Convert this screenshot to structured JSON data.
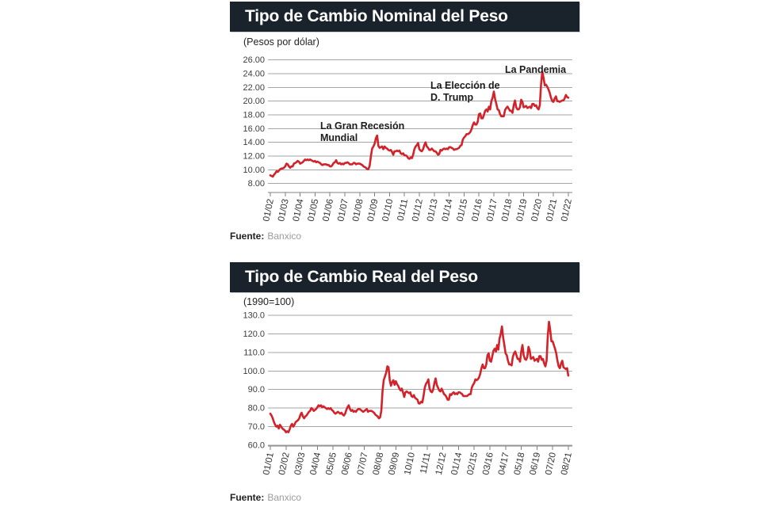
{
  "colors": {
    "accent_red": "#d2232a",
    "header_bar": "#1a222b",
    "grid": "#a6a6a6",
    "axis": "#808080"
  },
  "chart_data": [
    {
      "type": "line",
      "title": "Tipo de Cambio Nominal del Peso",
      "subtitle": "(Pesos por dólar)",
      "source_label": "Fuente:",
      "source": "Banxico",
      "ylabel": "Pesos por dólar",
      "y_max": 26,
      "y_min": 8,
      "y_step": 2,
      "ylim": [
        8,
        26
      ],
      "grid": true,
      "legend": "none",
      "y_ticks": [
        "26.00",
        "24.00",
        "22.00",
        "20.00",
        "18.00",
        "16.00",
        "14.00",
        "12.00",
        "10.00",
        "8.00"
      ],
      "x_labels": [
        "01/02",
        "01/03",
        "01/04",
        "01/05",
        "01/06",
        "01/07",
        "01/08",
        "01/09",
        "01/10",
        "01/11",
        "01/12",
        "01/13",
        "01/14",
        "01/15",
        "01/16",
        "01/17",
        "01/18",
        "01/19",
        "01/20",
        "01/21",
        "01/22"
      ],
      "annotations": [
        {
          "lines": [
            "La Gran Recesión",
            "Mundial"
          ]
        },
        {
          "lines": [
            "La Elección de",
            "D. Trump"
          ]
        },
        {
          "lines": [
            "La Pandemia"
          ]
        }
      ],
      "series": [
        {
          "name": "tipo de cambio nominal mensual",
          "color": "#d2232a",
          "x_start": "01/02",
          "x_end": "01/22",
          "frequency": "monthly",
          "values": [
            9.2,
            9.1,
            9.0,
            9.3,
            9.5,
            9.8,
            9.7,
            9.9,
            10.1,
            10.2,
            10.2,
            10.3,
            10.5,
            10.9,
            10.8,
            10.5,
            10.3,
            10.5,
            10.5,
            10.9,
            11.0,
            11.1,
            11.3,
            11.2,
            10.9,
            11.0,
            11.1,
            11.3,
            11.5,
            11.4,
            11.5,
            11.4,
            11.5,
            11.4,
            11.3,
            11.2,
            11.3,
            11.1,
            11.2,
            11.1,
            11.0,
            10.8,
            10.7,
            10.8,
            10.8,
            10.8,
            10.7,
            10.7,
            10.5,
            10.5,
            10.7,
            11.0,
            11.1,
            11.4,
            11.0,
            10.9,
            11.0,
            10.8,
            10.9,
            10.8,
            11.0,
            11.0,
            11.1,
            11.0,
            10.8,
            10.8,
            10.8,
            11.0,
            11.0,
            10.8,
            10.9,
            10.9,
            10.9,
            10.8,
            10.7,
            10.5,
            10.4,
            10.3,
            10.1,
            10.1,
            10.6,
            12.0,
            13.1,
            13.4,
            13.8,
            14.6,
            15.0,
            13.5,
            13.2,
            13.3,
            13.4,
            13.0,
            13.4,
            13.2,
            13.1,
            12.9,
            12.8,
            12.9,
            12.6,
            12.2,
            12.7,
            12.7,
            12.8,
            12.7,
            12.8,
            12.4,
            12.3,
            12.4,
            12.1,
            12.1,
            12.0,
            11.7,
            11.6,
            11.8,
            11.7,
            12.2,
            13.0,
            13.4,
            13.6,
            13.9,
            13.0,
            12.8,
            12.7,
            13.0,
            13.6,
            14.0,
            13.4,
            13.2,
            12.9,
            12.9,
            13.1,
            12.9,
            12.7,
            12.7,
            12.5,
            12.2,
            12.3,
            12.9,
            12.8,
            13.0,
            13.1,
            13.0,
            13.1,
            13.0,
            13.3,
            13.3,
            13.2,
            13.1,
            12.9,
            13.0,
            13.0,
            13.1,
            13.2,
            13.5,
            13.6,
            14.4,
            14.7,
            14.9,
            15.2,
            15.2,
            15.3,
            15.5,
            15.9,
            16.5,
            16.9,
            16.6,
            16.6,
            17.0,
            18.1,
            18.2,
            17.5,
            17.5,
            18.0,
            18.6,
            18.8,
            18.5,
            19.2,
            18.8,
            20.0,
            20.5,
            21.4,
            20.3,
            19.6,
            18.8,
            18.7,
            18.1,
            17.8,
            17.8,
            17.8,
            18.7,
            19.0,
            19.2,
            18.9,
            18.6,
            18.6,
            18.3,
            19.4,
            20.1,
            19.1,
            18.8,
            18.8,
            19.1,
            20.2,
            19.9,
            19.1,
            19.2,
            19.3,
            19.0,
            19.1,
            19.2,
            19.0,
            19.6,
            19.6,
            19.3,
            19.4,
            19.0,
            18.8,
            19.4,
            22.4,
            24.3,
            23.4,
            22.3,
            22.4,
            22.1,
            21.7,
            21.2,
            20.5,
            20.0,
            19.9,
            20.4,
            20.7,
            20.0,
            20.0,
            19.9,
            20.0,
            20.1,
            20.1,
            20.4,
            20.9,
            20.6,
            20.5
          ]
        }
      ]
    },
    {
      "type": "line",
      "title": "Tipo de Cambio Real del Peso",
      "subtitle": "(1990=100)",
      "source_label": "Fuente:",
      "source": "Banxico",
      "ylabel": "Índice 1990=100",
      "y_max": 130,
      "y_min": 60,
      "y_step": 10,
      "ylim": [
        60,
        130
      ],
      "grid": true,
      "legend": "none",
      "y_ticks": [
        "130.0",
        "120.0",
        "110.0",
        "100.0",
        "90.0",
        "80.0",
        "70.0",
        "60.0"
      ],
      "x_labels": [
        "01/01",
        "02/02",
        "03/03",
        "04/04",
        "05/05",
        "06/06",
        "07/07",
        "08/08",
        "09/09",
        "10/10",
        "11/11",
        "12/12",
        "01/14",
        "02/15",
        "03/16",
        "04/17",
        "05/18",
        "06/19",
        "07/20",
        "08/21"
      ],
      "annotations": [],
      "series": [
        {
          "name": "tipo de cambio real mensual",
          "color": "#d2232a",
          "x_start": "01/01",
          "x_end": "08/21",
          "frequency": "monthly",
          "values": [
            77,
            76,
            74.5,
            72.5,
            71,
            70,
            70.5,
            69,
            71,
            70,
            69,
            68.5,
            68,
            67,
            67.5,
            67,
            68.5,
            70.5,
            71.5,
            70,
            71,
            72.5,
            73,
            73.5,
            74.5,
            76.5,
            77.5,
            75.5,
            74.5,
            75.5,
            76,
            77,
            78,
            78.5,
            80,
            79.5,
            78.5,
            79,
            79.5,
            80.5,
            81.5,
            81,
            81.5,
            80.5,
            81,
            80.5,
            80,
            79.5,
            80,
            79.5,
            80,
            79,
            78.5,
            77.5,
            77,
            77.5,
            78,
            77.5,
            77,
            77.5,
            76.5,
            76,
            77,
            79,
            80.5,
            81.5,
            79.5,
            78.5,
            79,
            78,
            78.5,
            78,
            79,
            79.5,
            79.5,
            79,
            78.5,
            78,
            78.5,
            79,
            79.5,
            78,
            78.5,
            78.5,
            78.5,
            78,
            77.5,
            76.5,
            76,
            75.5,
            74.5,
            75,
            78.5,
            89,
            95,
            97,
            99,
            102.5,
            102,
            95,
            92,
            94,
            95,
            92.5,
            94.5,
            93,
            92,
            90.5,
            89.5,
            90.5,
            88.5,
            86,
            88.5,
            89,
            88.5,
            88,
            88.5,
            86.5,
            86,
            87,
            85.5,
            85,
            84.5,
            82.5,
            82.5,
            83.5,
            83,
            86.5,
            91,
            93,
            94,
            95.5,
            90.5,
            89,
            88.5,
            90,
            93.5,
            96,
            92.5,
            91,
            89.5,
            89,
            90.5,
            89,
            87.5,
            87,
            86,
            84.5,
            84.5,
            87.5,
            87,
            88,
            88.5,
            87.5,
            88,
            87.5,
            88.5,
            88.5,
            88,
            87.5,
            86.5,
            86.5,
            86.5,
            86.5,
            87,
            87.5,
            87.5,
            91,
            92.5,
            93.5,
            95.5,
            95,
            95.5,
            96.5,
            98.5,
            101.5,
            103.5,
            101.5,
            101.5,
            103.5,
            108.5,
            109.5,
            105.5,
            105,
            108,
            111,
            112,
            110.5,
            114,
            111.5,
            117.5,
            120,
            124,
            118,
            114,
            109.5,
            108.5,
            105.5,
            103.5,
            103.5,
            103,
            107.5,
            109.5,
            110.5,
            108.5,
            106.5,
            106.5,
            105,
            110.5,
            114,
            108.5,
            106.5,
            106,
            107.5,
            113,
            111,
            106.5,
            107,
            107.5,
            105.5,
            106,
            106.5,
            105,
            108,
            108,
            106,
            106.5,
            104,
            102.5,
            105.5,
            119,
            126.5,
            122,
            116,
            116,
            114,
            112,
            109.5,
            105.5,
            102.5,
            101.5,
            104,
            105.5,
            102,
            101.5,
            101,
            101.5,
            97.5
          ]
        }
      ]
    }
  ]
}
